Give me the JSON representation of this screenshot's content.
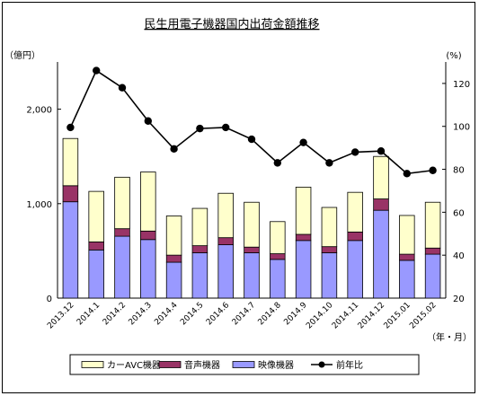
{
  "chart_data": {
    "type": "bar",
    "title": "民生用電子機器国内出荷金額推移",
    "left_unit": "（億円）",
    "right_unit": "(%)",
    "x_unit": "（年・月）",
    "categories": [
      "2013.12",
      "2014.1",
      "2014.2",
      "2014.3",
      "2014.4",
      "2014.5",
      "2014.6",
      "2014.7",
      "2014.8",
      "2014.9",
      "2014.10",
      "2014.11",
      "2014.12",
      "2015.01",
      "2015.02"
    ],
    "left_axis": {
      "min": 0,
      "max": 2500,
      "ticks": [
        0,
        1000,
        2000
      ],
      "tick_labels": [
        "0",
        "1,000",
        "2,000"
      ]
    },
    "right_axis": {
      "min": 20,
      "max": 130,
      "ticks": [
        20,
        40,
        60,
        80,
        100,
        120
      ],
      "tick_labels": [
        "20",
        "40",
        "60",
        "80",
        "100",
        "120"
      ]
    },
    "grid": false,
    "legend_position": "bottom",
    "series": [
      {
        "name": "映像機器",
        "kind": "stacked-bar",
        "color": "#9999ff",
        "values": [
          1020,
          510,
          655,
          620,
          380,
          480,
          565,
          480,
          410,
          610,
          480,
          610,
          930,
          400,
          465
        ]
      },
      {
        "name": "音声機器",
        "kind": "stacked-bar",
        "color": "#993366",
        "values": [
          170,
          85,
          80,
          90,
          75,
          75,
          75,
          60,
          60,
          65,
          65,
          90,
          120,
          65,
          65
        ]
      },
      {
        "name": "カーAVC機器",
        "kind": "stacked-bar",
        "color": "#ffffcc",
        "values": [
          500,
          535,
          545,
          625,
          415,
          395,
          470,
          475,
          340,
          500,
          415,
          420,
          450,
          410,
          485
        ]
      },
      {
        "name": "前年比",
        "kind": "line",
        "axis": "right",
        "color": "#000000",
        "values": [
          99.5,
          126,
          118,
          102.5,
          89.5,
          99,
          99.5,
          94,
          83,
          92.5,
          83,
          88,
          88.5,
          78,
          79.5
        ]
      }
    ]
  }
}
